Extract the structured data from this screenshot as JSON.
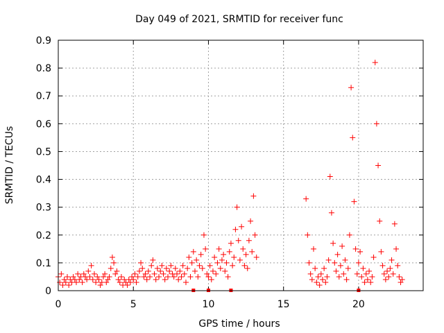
{
  "chart_data": {
    "type": "scatter",
    "title": "Day 049 of 2021, SRMTID for receiver func",
    "xlabel": "GPS time / hours",
    "ylabel": "SRMTID / TECUs",
    "xlim": [
      0,
      24.3
    ],
    "ylim": [
      0,
      0.9
    ],
    "xticks": [
      "0",
      "5",
      "10",
      "15",
      "20"
    ],
    "yticks": [
      "0",
      "0.1",
      "0.2",
      "0.3",
      "0.4",
      "0.5",
      "0.6",
      "0.7",
      "0.8",
      "0.9"
    ],
    "grid": true,
    "marker": "+",
    "color": "#ff0000",
    "series": [
      {
        "name": "SRMTID",
        "points": [
          [
            0.0,
            0.05
          ],
          [
            0.1,
            0.03
          ],
          [
            0.2,
            0.06
          ],
          [
            0.3,
            0.02
          ],
          [
            0.4,
            0.04
          ],
          [
            0.5,
            0.03
          ],
          [
            0.6,
            0.05
          ],
          [
            0.7,
            0.02
          ],
          [
            0.8,
            0.04
          ],
          [
            0.9,
            0.03
          ],
          [
            1.0,
            0.05
          ],
          [
            1.1,
            0.04
          ],
          [
            1.2,
            0.03
          ],
          [
            1.3,
            0.06
          ],
          [
            1.4,
            0.04
          ],
          [
            1.5,
            0.05
          ],
          [
            1.6,
            0.03
          ],
          [
            1.7,
            0.06
          ],
          [
            1.8,
            0.05
          ],
          [
            1.9,
            0.04
          ],
          [
            2.0,
            0.07
          ],
          [
            2.1,
            0.05
          ],
          [
            2.2,
            0.09
          ],
          [
            2.3,
            0.04
          ],
          [
            2.4,
            0.06
          ],
          [
            2.5,
            0.03
          ],
          [
            2.6,
            0.05
          ],
          [
            2.7,
            0.04
          ],
          [
            2.8,
            0.02
          ],
          [
            2.9,
            0.03
          ],
          [
            3.0,
            0.05
          ],
          [
            3.1,
            0.06
          ],
          [
            3.2,
            0.03
          ],
          [
            3.3,
            0.04
          ],
          [
            3.4,
            0.05
          ],
          [
            3.5,
            0.08
          ],
          [
            3.6,
            0.12
          ],
          [
            3.7,
            0.1
          ],
          [
            3.8,
            0.06
          ],
          [
            3.9,
            0.07
          ],
          [
            4.0,
            0.04
          ],
          [
            4.1,
            0.03
          ],
          [
            4.2,
            0.05
          ],
          [
            4.3,
            0.02
          ],
          [
            4.4,
            0.04
          ],
          [
            4.5,
            0.03
          ],
          [
            4.6,
            0.02
          ],
          [
            4.7,
            0.04
          ],
          [
            4.8,
            0.03
          ],
          [
            4.9,
            0.05
          ],
          [
            5.0,
            0.04
          ],
          [
            5.1,
            0.06
          ],
          [
            5.2,
            0.03
          ],
          [
            5.3,
            0.05
          ],
          [
            5.4,
            0.07
          ],
          [
            5.5,
            0.1
          ],
          [
            5.6,
            0.08
          ],
          [
            5.7,
            0.05
          ],
          [
            5.8,
            0.06
          ],
          [
            5.9,
            0.04
          ],
          [
            6.0,
            0.07
          ],
          [
            6.1,
            0.05
          ],
          [
            6.2,
            0.09
          ],
          [
            6.3,
            0.11
          ],
          [
            6.4,
            0.06
          ],
          [
            6.5,
            0.04
          ],
          [
            6.6,
            0.08
          ],
          [
            6.7,
            0.05
          ],
          [
            6.8,
            0.07
          ],
          [
            6.9,
            0.09
          ],
          [
            7.0,
            0.06
          ],
          [
            7.1,
            0.04
          ],
          [
            7.2,
            0.08
          ],
          [
            7.3,
            0.05
          ],
          [
            7.4,
            0.07
          ],
          [
            7.5,
            0.09
          ],
          [
            7.6,
            0.06
          ],
          [
            7.7,
            0.05
          ],
          [
            7.8,
            0.08
          ],
          [
            7.9,
            0.06
          ],
          [
            8.0,
            0.04
          ],
          [
            8.1,
            0.07
          ],
          [
            8.2,
            0.05
          ],
          [
            8.3,
            0.09
          ],
          [
            8.4,
            0.06
          ],
          [
            8.5,
            0.03
          ],
          [
            8.6,
            0.08
          ],
          [
            8.7,
            0.12
          ],
          [
            8.8,
            0.05
          ],
          [
            8.9,
            0.1
          ],
          [
            9.0,
            0.14
          ],
          [
            9.1,
            0.07
          ],
          [
            9.2,
            0.11
          ],
          [
            9.3,
            0.05
          ],
          [
            9.4,
            0.09
          ],
          [
            9.5,
            0.13
          ],
          [
            9.6,
            0.08
          ],
          [
            9.7,
            0.2
          ],
          [
            9.8,
            0.15
          ],
          [
            9.9,
            0.06
          ],
          [
            10.0,
            0.05
          ],
          [
            10.1,
            0.09
          ],
          [
            10.2,
            0.04
          ],
          [
            10.3,
            0.07
          ],
          [
            10.4,
            0.12
          ],
          [
            10.5,
            0.06
          ],
          [
            10.6,
            0.1
          ],
          [
            10.7,
            0.15
          ],
          [
            10.8,
            0.08
          ],
          [
            10.9,
            0.11
          ],
          [
            11.0,
            0.13
          ],
          [
            11.1,
            0.07
          ],
          [
            11.2,
            0.1
          ],
          [
            11.3,
            0.05
          ],
          [
            11.4,
            0.14
          ],
          [
            11.5,
            0.17
          ],
          [
            11.6,
            0.09
          ],
          [
            11.7,
            0.12
          ],
          [
            11.8,
            0.22
          ],
          [
            11.9,
            0.3
          ],
          [
            12.0,
            0.18
          ],
          [
            12.1,
            0.11
          ],
          [
            12.2,
            0.23
          ],
          [
            12.3,
            0.15
          ],
          [
            12.4,
            0.09
          ],
          [
            12.5,
            0.13
          ],
          [
            12.6,
            0.08
          ],
          [
            12.7,
            0.18
          ],
          [
            12.8,
            0.25
          ],
          [
            12.9,
            0.14
          ],
          [
            13.0,
            0.34
          ],
          [
            13.1,
            0.2
          ],
          [
            13.2,
            0.12
          ],
          [
            16.5,
            0.33
          ],
          [
            16.6,
            0.2
          ],
          [
            16.7,
            0.1
          ],
          [
            16.8,
            0.06
          ],
          [
            16.9,
            0.04
          ],
          [
            17.0,
            0.15
          ],
          [
            17.1,
            0.08
          ],
          [
            17.2,
            0.03
          ],
          [
            17.3,
            0.05
          ],
          [
            17.4,
            0.02
          ],
          [
            17.5,
            0.06
          ],
          [
            17.6,
            0.04
          ],
          [
            17.7,
            0.08
          ],
          [
            17.8,
            0.03
          ],
          [
            17.9,
            0.05
          ],
          [
            18.0,
            0.11
          ],
          [
            18.1,
            0.41
          ],
          [
            18.2,
            0.28
          ],
          [
            18.3,
            0.17
          ],
          [
            18.4,
            0.1
          ],
          [
            18.5,
            0.07
          ],
          [
            18.6,
            0.13
          ],
          [
            18.7,
            0.05
          ],
          [
            18.8,
            0.09
          ],
          [
            18.9,
            0.16
          ],
          [
            19.0,
            0.06
          ],
          [
            19.1,
            0.11
          ],
          [
            19.2,
            0.04
          ],
          [
            19.3,
            0.08
          ],
          [
            19.4,
            0.2
          ],
          [
            19.5,
            0.73
          ],
          [
            19.6,
            0.55
          ],
          [
            19.7,
            0.32
          ],
          [
            19.8,
            0.15
          ],
          [
            19.9,
            0.06
          ],
          [
            20.0,
            0.1
          ],
          [
            20.1,
            0.14
          ],
          [
            20.2,
            0.05
          ],
          [
            20.3,
            0.08
          ],
          [
            20.4,
            0.03
          ],
          [
            20.5,
            0.06
          ],
          [
            20.6,
            0.04
          ],
          [
            20.7,
            0.07
          ],
          [
            20.8,
            0.03
          ],
          [
            20.9,
            0.05
          ],
          [
            21.0,
            0.12
          ],
          [
            21.1,
            0.82
          ],
          [
            21.2,
            0.6
          ],
          [
            21.3,
            0.45
          ],
          [
            21.4,
            0.25
          ],
          [
            21.5,
            0.14
          ],
          [
            21.6,
            0.09
          ],
          [
            21.7,
            0.06
          ],
          [
            21.8,
            0.04
          ],
          [
            21.9,
            0.07
          ],
          [
            22.0,
            0.05
          ],
          [
            22.1,
            0.08
          ],
          [
            22.2,
            0.11
          ],
          [
            22.3,
            0.06
          ],
          [
            22.4,
            0.24
          ],
          [
            22.5,
            0.15
          ],
          [
            22.6,
            0.09
          ],
          [
            22.7,
            0.05
          ],
          [
            22.8,
            0.03
          ],
          [
            22.9,
            0.04
          ]
        ]
      }
    ],
    "zero_markers": [
      9.0,
      10.0,
      11.5,
      20.0
    ]
  }
}
